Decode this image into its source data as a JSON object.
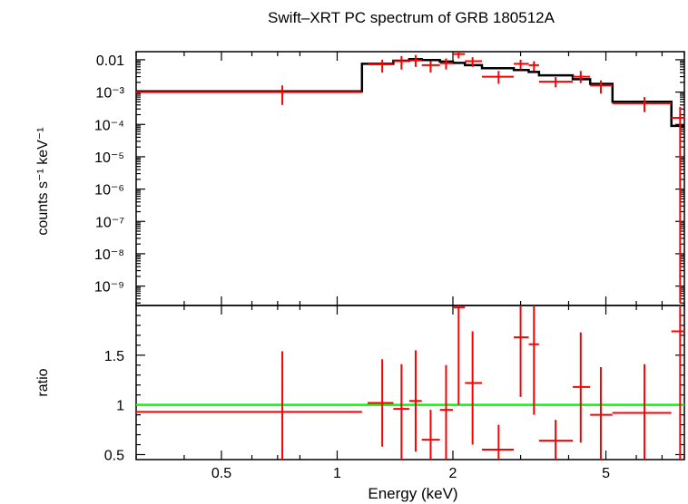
{
  "chart_data": [
    {
      "type": "line",
      "panel": "spectrum",
      "title": "Swift–XRT PC spectrum of GRB 180512A",
      "ylabel": "counts s⁻¹ keV⁻¹",
      "yscale": "log",
      "xscale": "log",
      "xlim": [
        0.3,
        8.0
      ],
      "ylim_log10": [
        -9.6,
        -1.75
      ],
      "ytick_labels": [
        "0.01",
        "10⁻³",
        "10⁻⁴",
        "10⁻⁵",
        "10⁻⁶",
        "10⁻⁷",
        "10⁻⁸",
        "10⁻⁹"
      ],
      "ytick_values_log10": [
        -2,
        -3,
        -4,
        -5,
        -6,
        -7,
        -8,
        -9
      ],
      "series": [
        {
          "name": "data",
          "color": "#ff0000",
          "points": [
            {
              "x": 0.72,
              "xlo": 0.3,
              "xhi": 1.16,
              "y": 0.001,
              "ylo": 0.0004,
              "yhi": 0.0016
            },
            {
              "x": 1.31,
              "xlo": 1.2,
              "xhi": 1.4,
              "y": 0.0072,
              "ylo": 0.004,
              "yhi": 0.01
            },
            {
              "x": 1.47,
              "xlo": 1.4,
              "xhi": 1.54,
              "y": 0.009,
              "ylo": 0.005,
              "yhi": 0.013
            },
            {
              "x": 1.6,
              "xlo": 1.54,
              "xhi": 1.66,
              "y": 0.0095,
              "ylo": 0.006,
              "yhi": 0.014
            },
            {
              "x": 1.75,
              "xlo": 1.66,
              "xhi": 1.85,
              "y": 0.0068,
              "ylo": 0.004,
              "yhi": 0.009
            },
            {
              "x": 1.92,
              "xlo": 1.85,
              "xhi": 2.0,
              "y": 0.0078,
              "ylo": 0.005,
              "yhi": 0.011
            },
            {
              "x": 2.07,
              "xlo": 2.0,
              "xhi": 2.15,
              "y": 0.015,
              "ylo": 0.011,
              "yhi": 0.019
            },
            {
              "x": 2.25,
              "xlo": 2.15,
              "xhi": 2.38,
              "y": 0.009,
              "ylo": 0.006,
              "yhi": 0.012
            },
            {
              "x": 2.63,
              "xlo": 2.38,
              "xhi": 2.88,
              "y": 0.003,
              "ylo": 0.0018,
              "yhi": 0.0045
            },
            {
              "x": 3.0,
              "xlo": 2.88,
              "xhi": 3.15,
              "y": 0.0075,
              "ylo": 0.005,
              "yhi": 0.01
            },
            {
              "x": 3.25,
              "xlo": 3.15,
              "xhi": 3.35,
              "y": 0.0068,
              "ylo": 0.0045,
              "yhi": 0.009
            },
            {
              "x": 3.7,
              "xlo": 3.35,
              "xhi": 4.1,
              "y": 0.0021,
              "ylo": 0.0014,
              "yhi": 0.0029
            },
            {
              "x": 4.3,
              "xlo": 4.1,
              "xhi": 4.55,
              "y": 0.003,
              "ylo": 0.0019,
              "yhi": 0.0045
            },
            {
              "x": 4.85,
              "xlo": 4.55,
              "xhi": 5.2,
              "y": 0.0016,
              "ylo": 0.0009,
              "yhi": 0.0023
            },
            {
              "x": 6.3,
              "xlo": 5.2,
              "xhi": 7.4,
              "y": 0.00045,
              "ylo": 0.00024,
              "yhi": 0.0007
            },
            {
              "x": 7.8,
              "xlo": 7.4,
              "xhi": 8.0,
              "y": 0.00016,
              "ylo": 3e-10,
              "yhi": 0.00035
            }
          ]
        },
        {
          "name": "model",
          "color": "#000000",
          "steps": [
            {
              "xlo": 0.3,
              "xhi": 1.16,
              "y": 0.00105
            },
            {
              "xlo": 1.16,
              "xhi": 1.4,
              "y": 0.0075
            },
            {
              "xlo": 1.4,
              "xhi": 1.54,
              "y": 0.0093
            },
            {
              "xlo": 1.54,
              "xhi": 1.66,
              "y": 0.0105
            },
            {
              "xlo": 1.66,
              "xhi": 1.85,
              "y": 0.0098
            },
            {
              "xlo": 1.85,
              "xhi": 2.0,
              "y": 0.0088
            },
            {
              "xlo": 2.0,
              "xhi": 2.15,
              "y": 0.008
            },
            {
              "xlo": 2.15,
              "xhi": 2.38,
              "y": 0.0068
            },
            {
              "xlo": 2.38,
              "xhi": 2.88,
              "y": 0.0055
            },
            {
              "xlo": 2.88,
              "xhi": 3.15,
              "y": 0.0048
            },
            {
              "xlo": 3.15,
              "xhi": 3.35,
              "y": 0.0042
            },
            {
              "xlo": 3.35,
              "xhi": 4.1,
              "y": 0.0033
            },
            {
              "xlo": 4.1,
              "xhi": 4.55,
              "y": 0.0025
            },
            {
              "xlo": 4.55,
              "xhi": 5.2,
              "y": 0.0018
            },
            {
              "xlo": 5.2,
              "xhi": 7.4,
              "y": 0.0005
            },
            {
              "xlo": 7.4,
              "xhi": 8.0,
              "y": 9e-05
            }
          ]
        }
      ]
    },
    {
      "type": "line",
      "panel": "ratio",
      "ylabel": "ratio",
      "xlabel": "Energy (keV)",
      "xscale": "log",
      "xlim": [
        0.3,
        8.0
      ],
      "ylim": [
        0.45,
        2.0
      ],
      "ytick_labels": [
        "0.5",
        "1",
        "1.5"
      ],
      "ytick_values": [
        0.5,
        1.0,
        1.5
      ],
      "xtick_labels": [
        "0.5",
        "1",
        "2",
        "5"
      ],
      "xtick_values": [
        0.5,
        1,
        2,
        5
      ],
      "reference_line": {
        "y": 1.0,
        "color": "#00ff00"
      },
      "series": [
        {
          "name": "ratio",
          "color": "#ff0000",
          "points": [
            {
              "x": 0.72,
              "xlo": 0.3,
              "xhi": 1.16,
              "y": 0.93,
              "ylo": 0.45,
              "yhi": 1.54
            },
            {
              "x": 1.31,
              "xlo": 1.2,
              "xhi": 1.4,
              "y": 1.02,
              "ylo": 0.58,
              "yhi": 1.46
            },
            {
              "x": 1.47,
              "xlo": 1.4,
              "xhi": 1.54,
              "y": 0.96,
              "ylo": 0.45,
              "yhi": 1.41
            },
            {
              "x": 1.6,
              "xlo": 1.54,
              "xhi": 1.66,
              "y": 1.04,
              "ylo": 0.53,
              "yhi": 1.55
            },
            {
              "x": 1.75,
              "xlo": 1.66,
              "xhi": 1.85,
              "y": 0.65,
              "ylo": 0.45,
              "yhi": 0.95
            },
            {
              "x": 1.92,
              "xlo": 1.85,
              "xhi": 2.0,
              "y": 0.95,
              "ylo": 0.45,
              "yhi": 1.4
            },
            {
              "x": 2.07,
              "xlo": 2.0,
              "xhi": 2.15,
              "y": 1.98,
              "ylo": 1.0,
              "yhi": 2.0
            },
            {
              "x": 2.25,
              "xlo": 2.15,
              "xhi": 2.38,
              "y": 1.22,
              "ylo": 0.6,
              "yhi": 1.74
            },
            {
              "x": 2.63,
              "xlo": 2.38,
              "xhi": 2.88,
              "y": 0.55,
              "ylo": 0.45,
              "yhi": 0.8
            },
            {
              "x": 3.0,
              "xlo": 2.88,
              "xhi": 3.15,
              "y": 1.68,
              "ylo": 1.08,
              "yhi": 2.0
            },
            {
              "x": 3.25,
              "xlo": 3.15,
              "xhi": 3.35,
              "y": 1.61,
              "ylo": 0.9,
              "yhi": 2.0
            },
            {
              "x": 3.7,
              "xlo": 3.35,
              "xhi": 4.1,
              "y": 0.64,
              "ylo": 0.45,
              "yhi": 0.85
            },
            {
              "x": 4.3,
              "xlo": 4.1,
              "xhi": 4.55,
              "y": 1.18,
              "ylo": 0.62,
              "yhi": 1.73
            },
            {
              "x": 4.85,
              "xlo": 4.55,
              "xhi": 5.2,
              "y": 0.9,
              "ylo": 0.45,
              "yhi": 1.38
            },
            {
              "x": 6.3,
              "xlo": 5.2,
              "xhi": 7.4,
              "y": 0.92,
              "ylo": 0.45,
              "yhi": 1.41
            },
            {
              "x": 7.8,
              "xlo": 7.4,
              "xhi": 8.0,
              "y": 1.74,
              "ylo": 0.45,
              "yhi": 2.0
            }
          ]
        }
      ]
    }
  ]
}
